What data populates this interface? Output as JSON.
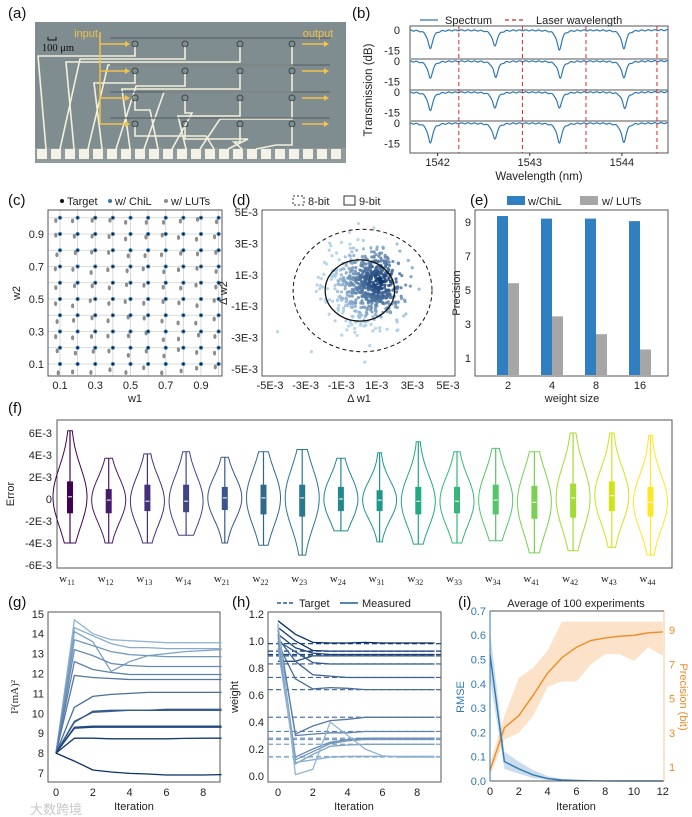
{
  "panel_labels": {
    "a": "(a)",
    "b": "(b)",
    "c": "(c)",
    "d": "(d)",
    "e": "(e)",
    "f": "(f)",
    "g": "(g)",
    "h": "(h)",
    "i": "(i)"
  },
  "watermark": "大数跨境",
  "chart_data": [
    {
      "id": "a",
      "type": "image",
      "texts": {
        "input": "input",
        "output": "output",
        "scale": "100 μm"
      },
      "colors": {
        "chip": "#7f8c90",
        "wire": "#f3f0dc",
        "arrow": "#f2c24a",
        "pad": "#f4f1e6"
      }
    },
    {
      "id": "b",
      "type": "line",
      "legend": [
        "Spectrum",
        "Laser wavelength"
      ],
      "xlabel": "Wavelength (nm)",
      "ylabel": "Transmission (dB)",
      "xlim": [
        1541.7,
        1544.5
      ],
      "xticks": [
        1542,
        1543,
        1544
      ],
      "yticks": [
        0,
        -15
      ],
      "rows": [
        {
          "dips": [
            1541.92,
            1542.62,
            1543.32,
            1544.02
          ],
          "depth": [
            -14,
            -12,
            -15,
            -14
          ]
        },
        {
          "dips": [
            1541.92,
            1542.63,
            1543.33,
            1544.02
          ],
          "depth": [
            -13,
            -12,
            -12.5,
            -12.5
          ]
        },
        {
          "dips": [
            1541.92,
            1542.62,
            1543.32,
            1544.03
          ],
          "depth": [
            -14,
            -12,
            -12,
            -12
          ]
        },
        {
          "dips": [
            1541.92,
            1542.62,
            1543.32,
            1544.02
          ],
          "depth": [
            -15,
            -12,
            -15,
            -14.5
          ]
        }
      ],
      "laser_wavelengths": [
        1542.23,
        1542.92,
        1543.61,
        1544.38
      ],
      "colors": {
        "spectrum": "#2f78b4",
        "laser": "#d62728"
      }
    },
    {
      "id": "c",
      "type": "scatter",
      "legend": [
        "Target",
        "w/ ChiL",
        "w/ LUTs"
      ],
      "xlabel": "w1",
      "ylabel": "w2",
      "xticks": [
        0.1,
        0.3,
        0.5,
        0.7,
        0.9
      ],
      "yticks": [
        0.1,
        0.3,
        0.5,
        0.7,
        0.9
      ],
      "grid_values": [
        0.1,
        0.2,
        0.3,
        0.4,
        0.5,
        0.6,
        0.7,
        0.8,
        0.9,
        1.0
      ],
      "lut_offset_mean": [
        -0.02,
        -0.03
      ],
      "colors": {
        "target": "#111111",
        "chil": "#2f78b4",
        "lut": "#8c8c8c"
      }
    },
    {
      "id": "d",
      "type": "scatter",
      "legend": [
        "8-bit",
        "9-bit"
      ],
      "xlabel": "Δ w1",
      "ylabel": "Δ w2",
      "xlim": [
        -0.0055,
        0.0055
      ],
      "ylim": [
        -0.0055,
        0.0055
      ],
      "xticks": [
        "-5E-3",
        "-3E-3",
        "-1E-3",
        "1E-3",
        "3E-3",
        "5E-3"
      ],
      "xtick_values": [
        -0.005,
        -0.003,
        -0.001,
        0.001,
        0.003,
        0.005
      ],
      "yticks": [
        "5E-3",
        "3E-3",
        "1E-3",
        "-1E-3",
        "-3E-3",
        "-5E-3"
      ],
      "ytick_values": [
        0.005,
        0.003,
        0.001,
        -0.001,
        -0.003,
        -0.005
      ],
      "circle_8bit": {
        "center": [
          0.0002,
          0.0
        ],
        "radius": 0.0039
      },
      "circle_9bit": {
        "center": [
          5e-05,
          0.0
        ],
        "radius": 0.00195
      },
      "cloud": {
        "center": [
          0.0006,
          0.0003
        ],
        "sd": [
          0.0011,
          0.0012
        ],
        "count": 650
      }
    },
    {
      "id": "e",
      "type": "bar",
      "legend": [
        "w/ChiL",
        "w/ LUTs"
      ],
      "categories": [
        "2",
        "4",
        "8",
        "16"
      ],
      "series": [
        {
          "name": "w/ChiL",
          "values": [
            9.35,
            9.2,
            9.2,
            9.05
          ],
          "color": "#2f7fc1"
        },
        {
          "name": "w/ LUTs",
          "values": [
            5.4,
            3.45,
            2.4,
            1.5
          ],
          "color": "#a6a6a6"
        }
      ],
      "xlabel": "weight size",
      "ylabel": "Precision",
      "yticks": [
        1,
        3,
        5,
        7,
        9
      ],
      "ylim": [
        0,
        9.8
      ]
    },
    {
      "id": "f",
      "type": "violin",
      "ylabel": "Error",
      "unit": 0.001,
      "yticks": [
        "6E-3",
        "4E-3",
        "2E-3",
        "0",
        "-2E-3",
        "-4E-3",
        "-6E-3"
      ],
      "ytick_values": [
        6,
        4,
        2,
        0,
        -2,
        -4,
        -6
      ],
      "categories": [
        "w11",
        "w12",
        "w13",
        "w14",
        "w21",
        "w22",
        "w23",
        "w24",
        "w31",
        "w32",
        "w33",
        "w34",
        "w41",
        "w42",
        "w43",
        "w44"
      ],
      "min": [
        -4.0,
        -4.0,
        -4.0,
        -3.3,
        -4.0,
        -4.2,
        -5.1,
        -2.9,
        -3.9,
        -4.1,
        -4.0,
        -3.8,
        -4.9,
        -4.7,
        -4.4,
        -5.1
      ],
      "max": [
        6.2,
        3.7,
        4.1,
        4.3,
        3.8,
        4.3,
        4.5,
        3.7,
        4.2,
        5.2,
        4.3,
        4.6,
        4.3,
        6.0,
        6.0,
        5.8
      ],
      "q1": [
        -1.3,
        -1.3,
        -1.1,
        -1.2,
        -1.0,
        -1.4,
        -1.6,
        -1.1,
        -1.1,
        -1.4,
        -1.3,
        -1.4,
        -1.8,
        -1.7,
        -1.1,
        -1.6
      ],
      "q3": [
        1.6,
        0.9,
        1.3,
        1.3,
        1.1,
        1.3,
        1.3,
        1.1,
        0.8,
        1.1,
        1.1,
        1.3,
        1.2,
        1.4,
        1.6,
        1.1
      ],
      "median": [
        0.2,
        -0.1,
        -0.2,
        -0.2,
        0.1,
        0.1,
        0.1,
        0.0,
        -0.1,
        -0.2,
        -0.2,
        -0.1,
        -0.3,
        0.1,
        0.3,
        -0.3
      ],
      "colors": [
        "#440154",
        "#481a6c",
        "#472f7d",
        "#414487",
        "#39568c",
        "#31688e",
        "#2a788e",
        "#23888e",
        "#1f988b",
        "#22a884",
        "#35b779",
        "#54c568",
        "#7ad151",
        "#a5db36",
        "#d2e21b",
        "#fde725"
      ]
    },
    {
      "id": "g",
      "type": "line",
      "xlabel": "Iteration",
      "ylabel": "I²(mA)²",
      "xticks": [
        0,
        2,
        4,
        6,
        8
      ],
      "yticks": [
        7,
        8,
        9,
        10,
        11,
        12,
        13,
        14,
        15
      ],
      "x": [
        0,
        1,
        2,
        3,
        4,
        5,
        6,
        7,
        8,
        9
      ],
      "series": [
        [
          8,
          14.7,
          14.0,
          13.7,
          13.65,
          13.6,
          13.55,
          13.55,
          13.55,
          13.55
        ],
        [
          8,
          14.3,
          13.9,
          13.5,
          13.3,
          13.3,
          13.25,
          13.25,
          13.25,
          13.25
        ],
        [
          8,
          14.1,
          13.6,
          12.1,
          12.6,
          12.9,
          13.0,
          13.1,
          13.15,
          13.2
        ],
        [
          8,
          13.7,
          13.4,
          13.1,
          12.95,
          12.9,
          12.85,
          12.85,
          12.85,
          12.85
        ],
        [
          8,
          13.2,
          12.9,
          12.5,
          12.4,
          12.35,
          12.35,
          12.35,
          12.35,
          12.35
        ],
        [
          8,
          12.6,
          12.2,
          12.05,
          11.95,
          11.95,
          11.95,
          11.95,
          11.95,
          11.95
        ],
        [
          8,
          11.9,
          11.8,
          11.75,
          11.7,
          11.7,
          11.7,
          11.7,
          11.7,
          11.7
        ],
        [
          8,
          10.3,
          10.85,
          10.95,
          11.0,
          11.05,
          11.05,
          11.05,
          11.05,
          11.05
        ],
        [
          8,
          9.6,
          10.05,
          10.1,
          10.15,
          10.15,
          10.2,
          10.2,
          10.2,
          10.2
        ],
        [
          8,
          9.55,
          10.1,
          10.15,
          10.15,
          10.15,
          10.15,
          10.15,
          10.15,
          10.15
        ],
        [
          8,
          9.3,
          9.35,
          9.35,
          9.35,
          9.35,
          9.35,
          9.35,
          9.35,
          9.35
        ],
        [
          8,
          9.25,
          9.3,
          9.3,
          9.3,
          9.3,
          9.3,
          9.3,
          9.3,
          9.3
        ],
        [
          8,
          8.75,
          8.75,
          8.72,
          8.72,
          8.72,
          8.72,
          8.74,
          8.75,
          8.75
        ],
        [
          8,
          7.6,
          7.15,
          7.05,
          6.98,
          6.95,
          6.9,
          6.9,
          6.9,
          6.92
        ]
      ]
    },
    {
      "id": "h",
      "type": "line",
      "legend": [
        "Target",
        "Measured"
      ],
      "xlabel": "Iteration",
      "ylabel": "weight",
      "xticks": [
        0,
        2,
        4,
        6,
        8
      ],
      "yticks": [
        0.0,
        0.2,
        0.4,
        0.6,
        0.8,
        1.0,
        1.2
      ],
      "x": [
        0,
        1,
        2,
        3,
        4,
        5,
        6,
        7,
        8,
        9
      ],
      "targets": [
        0.98,
        0.925,
        0.9,
        0.89,
        0.83,
        0.73,
        0.64,
        0.435,
        0.33,
        0.28,
        0.27,
        0.235,
        0.145,
        0.14
      ],
      "series": [
        [
          1.15,
          1.05,
          0.99,
          0.985,
          0.985,
          0.99,
          0.985,
          0.985,
          0.985,
          0.985
        ],
        [
          1.1,
          1.0,
          0.93,
          0.925,
          0.925,
          0.925,
          0.925,
          0.925,
          0.925,
          0.925
        ],
        [
          1.05,
          0.95,
          0.91,
          0.9,
          0.9,
          0.9,
          0.9,
          0.9,
          0.9,
          0.9
        ],
        [
          0.85,
          0.85,
          0.89,
          0.89,
          0.89,
          0.89,
          0.89,
          0.89,
          0.89,
          0.89
        ],
        [
          1.0,
          0.92,
          0.84,
          0.83,
          0.83,
          0.83,
          0.83,
          0.83,
          0.83,
          0.83
        ],
        [
          1.02,
          0.85,
          0.75,
          0.74,
          0.73,
          0.73,
          0.73,
          0.73,
          0.73,
          0.73
        ],
        [
          0.98,
          0.72,
          0.645,
          0.655,
          0.65,
          0.64,
          0.64,
          0.64,
          0.64,
          0.64
        ],
        [
          1.08,
          0.31,
          0.37,
          0.41,
          0.42,
          0.435,
          0.435,
          0.435,
          0.435,
          0.435
        ],
        [
          1.1,
          0.3,
          0.31,
          0.32,
          0.32,
          0.33,
          0.33,
          0.33,
          0.33,
          0.33
        ],
        [
          1.05,
          0.14,
          0.2,
          0.25,
          0.27,
          0.28,
          0.28,
          0.28,
          0.28,
          0.28
        ],
        [
          1.0,
          0.12,
          0.18,
          0.24,
          0.26,
          0.27,
          0.27,
          0.27,
          0.27,
          0.27
        ],
        [
          1.12,
          0.09,
          0.16,
          0.22,
          0.23,
          0.235,
          0.235,
          0.235,
          0.235,
          0.235
        ],
        [
          0.95,
          0.1,
          0.12,
          0.14,
          0.145,
          0.145,
          0.145,
          0.145,
          0.145,
          0.145
        ],
        [
          1.13,
          0.01,
          0.05,
          0.4,
          0.3,
          0.2,
          0.15,
          0.14,
          0.14,
          0.14
        ]
      ]
    },
    {
      "id": "i",
      "type": "line",
      "title": "Average of 100 experiments",
      "xlabel": "Iteration",
      "ylabel": "RMSE",
      "ylabel_right": "Precision (bit)",
      "xticks": [
        0,
        2,
        4,
        6,
        8,
        10,
        12
      ],
      "yticks": [
        0.0,
        0.1,
        0.2,
        0.3,
        0.4,
        0.5,
        0.6,
        0.7
      ],
      "yticks_right": [
        1,
        3,
        5,
        7,
        9
      ],
      "x": [
        0,
        1,
        2,
        3,
        4,
        5,
        6,
        7,
        8,
        9,
        10,
        11,
        12
      ],
      "rmse": {
        "mean": [
          0.52,
          0.08,
          0.05,
          0.025,
          0.01,
          0.004,
          0.002,
          0.001,
          0.0005,
          0,
          0,
          0,
          0
        ],
        "upper": [
          0.62,
          0.12,
          0.08,
          0.045,
          0.02,
          0.008,
          0.004,
          0.002,
          0.001,
          0.001,
          0.001,
          0.001,
          0.001
        ],
        "lower": [
          0.42,
          0.05,
          0.03,
          0.012,
          0.004,
          0.001,
          0,
          0,
          0,
          0,
          0,
          0,
          0
        ],
        "color": "#2f78b4"
      },
      "precision": {
        "mean": [
          0.8,
          3.3,
          4.0,
          5.2,
          6.5,
          7.4,
          8.0,
          8.4,
          8.55,
          8.65,
          8.7,
          8.85,
          8.9
        ],
        "upper": [
          1.2,
          4.0,
          6.2,
          6.8,
          7.8,
          9.5,
          9.5,
          9.5,
          9.5,
          9.5,
          9.5,
          9.5,
          9.5
        ],
        "lower": [
          0.5,
          2.6,
          3.0,
          4.0,
          5.7,
          6.0,
          6.0,
          7.0,
          7.6,
          7.6,
          7.2,
          8.0,
          7.5
        ],
        "color": "#f08a24"
      }
    }
  ]
}
